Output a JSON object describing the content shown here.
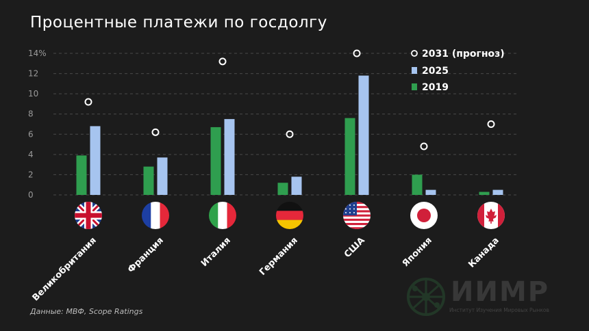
{
  "title": "Процентные платежи по госдолгу",
  "source": "Данные: МВФ, Scope Ratings",
  "watermark": {
    "name": "ИИМР",
    "subtitle": "Институт Изучения Мировых Рынков"
  },
  "colors": {
    "background": "#1c1c1c",
    "series_2019": "#2f9e4f",
    "series_2025": "#a6c4ef",
    "forecast_marker": "#ffffff",
    "text": "#ffffff",
    "tick_text": "#9a9a9a",
    "grid": "#4a4a4a"
  },
  "chart_data": {
    "type": "bar",
    "title": "Процентные платежи по госдолгу",
    "xlabel": "",
    "ylabel": "",
    "categories": [
      "Великобритания",
      "Франция",
      "Италия",
      "Германия",
      "США",
      "Япония",
      "Канада"
    ],
    "category_flags": [
      "flag-uk-icon",
      "flag-france-icon",
      "flag-italy-icon",
      "flag-germany-icon",
      "flag-usa-icon",
      "flag-japan-icon",
      "flag-canada-icon"
    ],
    "series": [
      {
        "name": "2019",
        "kind": "bar",
        "color": "#2f9e4f",
        "values": [
          3.9,
          2.8,
          6.7,
          1.2,
          7.6,
          2.0,
          0.3
        ]
      },
      {
        "name": "2025",
        "kind": "bar",
        "color": "#a6c4ef",
        "values": [
          6.8,
          3.7,
          7.5,
          1.8,
          11.8,
          0.5,
          0.5
        ]
      },
      {
        "name": "2031 (прогноз)",
        "kind": "marker",
        "color": "#ffffff",
        "values": [
          9.2,
          6.2,
          13.2,
          6.0,
          14.0,
          4.8,
          7.0
        ]
      }
    ],
    "legend_order": [
      "2031 (прогноз)",
      "2025",
      "2019"
    ],
    "legend_position": "top-right",
    "y_ticks": [
      "0",
      "2",
      "4",
      "6",
      "8",
      "10",
      "12",
      "14%"
    ],
    "ylim": [
      0,
      14
    ],
    "grid": true,
    "grid_style": "dashed-horizontal"
  }
}
